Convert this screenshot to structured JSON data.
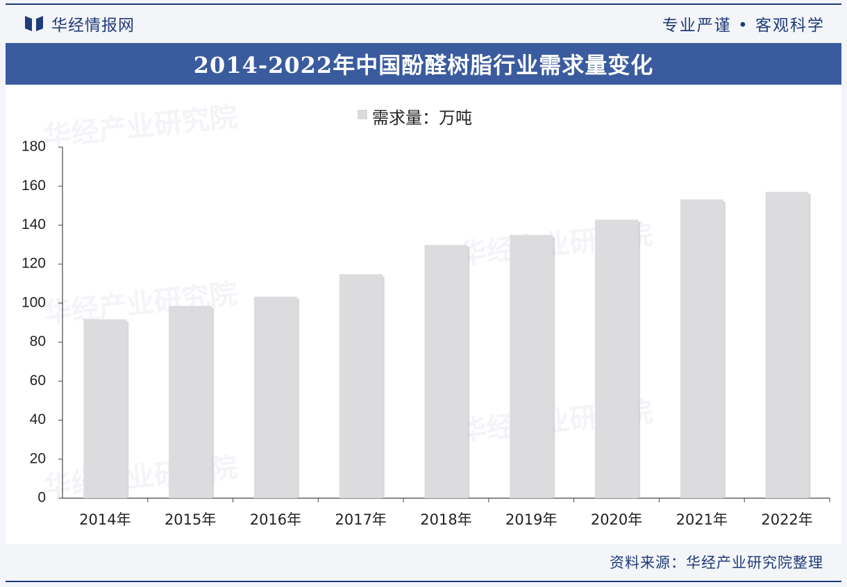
{
  "header": {
    "brand_name": "华经情报网",
    "slogan": "专业严谨 • 客观科学"
  },
  "source_text": "资料来源：华经产业研究院整理",
  "watermarks": [
    "华经产业研究院",
    "华经产业研究院",
    "华经产业研究院",
    "华经产业研究院",
    "华经产业研究院"
  ],
  "colors": {
    "brand_navy": "#1f3b78",
    "title_bar": "#3a5b9e",
    "bar_fill": "#dcdcdf",
    "axis": "#444444"
  },
  "chart_data": {
    "type": "bar",
    "title": "2014-2022年中国酚醛树脂行业需求量变化",
    "categories": [
      "2014年",
      "2015年",
      "2016年",
      "2017年",
      "2018年",
      "2019年",
      "2020年",
      "2021年",
      "2022年"
    ],
    "series": [
      {
        "name": "需求量：万吨",
        "values": [
          91.7,
          98.6,
          103.3,
          114.8,
          129.8,
          135.0,
          142.8,
          153.2,
          157.0
        ]
      }
    ],
    "ylim": [
      0,
      180
    ],
    "yticks": [
      0,
      20,
      40,
      60,
      80,
      100,
      120,
      140,
      160,
      180
    ],
    "legend_position": "top-center",
    "grid": false
  }
}
